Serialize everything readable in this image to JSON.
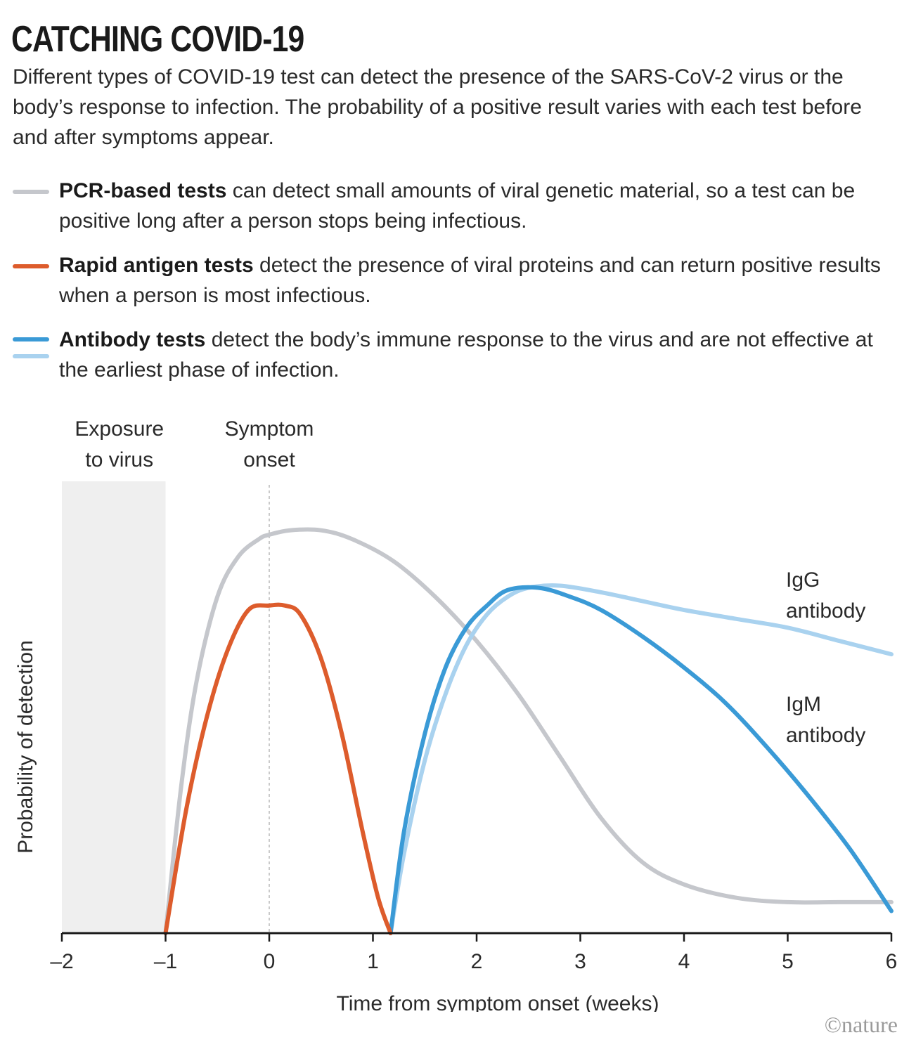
{
  "header": {
    "title": "CATCHING COVID-19",
    "subtitle": "Different types of COVID-19 test can detect the presence of the SARS-CoV-2 virus or the body’s response to infection. The probability of a positive result varies with each test before and after symptoms appear."
  },
  "legend": [
    {
      "bold": "PCR-based tests",
      "text": " can detect small amounts of viral genetic material, so a test can be positive long after a person stops being infectious.",
      "color": "#c5c7cc"
    },
    {
      "bold": "Rapid antigen tests",
      "text": " detect the presence of viral proteins and can return positive results when a person is most infectious.",
      "color": "#dd5c2c"
    },
    {
      "bold": "Antibody tests",
      "text": " detect the body’s immune response to the virus and are not effective at the earliest phase of infection.",
      "color": "#3a9ad6",
      "color2": "#a9d2ef"
    }
  ],
  "chart_data": {
    "type": "line",
    "xlabel": "Time from symptom onset (weeks)",
    "ylabel": "Probability of detection",
    "xlim": [
      -2,
      6
    ],
    "ylim": [
      0,
      1
    ],
    "x_ticks": [
      "–2",
      "–1",
      "0",
      "1",
      "2",
      "3",
      "4",
      "5",
      "6"
    ],
    "x_tick_values": [
      -2,
      -1,
      0,
      1,
      2,
      3,
      4,
      5,
      6
    ],
    "shaded_region": {
      "x": [
        -2,
        -1
      ],
      "label_lines": [
        "Exposure",
        "to virus"
      ],
      "color": "#efefef"
    },
    "reference_line": {
      "x": 0,
      "label_lines": [
        "Symptom",
        "onset"
      ]
    },
    "series": [
      {
        "key": "pcr",
        "color": "#c5c7cc",
        "x": [
          -1.0,
          -0.85,
          -0.7,
          -0.5,
          -0.3,
          -0.1,
          0.0,
          0.2,
          0.5,
          0.8,
          1.2,
          1.6,
          2.0,
          2.4,
          2.8,
          3.2,
          3.6,
          4.0,
          4.5,
          5.0,
          5.5,
          6.0
        ],
        "y": [
          0.0,
          0.33,
          0.57,
          0.76,
          0.85,
          0.89,
          0.9,
          0.91,
          0.91,
          0.89,
          0.84,
          0.76,
          0.66,
          0.54,
          0.4,
          0.26,
          0.16,
          0.11,
          0.08,
          0.07,
          0.07,
          0.07
        ]
      },
      {
        "key": "antigen",
        "color": "#dd5c2c",
        "x": [
          -1.0,
          -0.8,
          -0.6,
          -0.4,
          -0.2,
          0.0,
          0.15,
          0.3,
          0.5,
          0.7,
          0.9,
          1.05,
          1.17
        ],
        "y": [
          0.0,
          0.28,
          0.49,
          0.64,
          0.73,
          0.74,
          0.74,
          0.72,
          0.62,
          0.45,
          0.23,
          0.08,
          0.0
        ]
      },
      {
        "key": "igm",
        "name": "IgM antibody",
        "label_lines": [
          "IgM",
          "antibody"
        ],
        "color": "#3a9ad6",
        "x": [
          1.17,
          1.3,
          1.5,
          1.7,
          1.9,
          2.1,
          2.3,
          2.6,
          2.9,
          3.2,
          3.6,
          4.0,
          4.4,
          4.8,
          5.2,
          5.6,
          6.0
        ],
        "y": [
          0.0,
          0.23,
          0.45,
          0.6,
          0.69,
          0.74,
          0.775,
          0.78,
          0.76,
          0.73,
          0.67,
          0.6,
          0.52,
          0.42,
          0.31,
          0.19,
          0.05
        ]
      },
      {
        "key": "igg",
        "name": "IgG antibody",
        "label_lines": [
          "IgG",
          "antibody"
        ],
        "color": "#a9d2ef",
        "x": [
          1.17,
          1.3,
          1.5,
          1.7,
          1.9,
          2.1,
          2.3,
          2.5,
          2.8,
          3.2,
          3.6,
          4.0,
          4.5,
          5.0,
          5.5,
          6.0
        ],
        "y": [
          0.0,
          0.18,
          0.39,
          0.54,
          0.65,
          0.72,
          0.76,
          0.78,
          0.785,
          0.77,
          0.75,
          0.73,
          0.71,
          0.69,
          0.66,
          0.63
        ]
      }
    ]
  },
  "credit": "©nature"
}
